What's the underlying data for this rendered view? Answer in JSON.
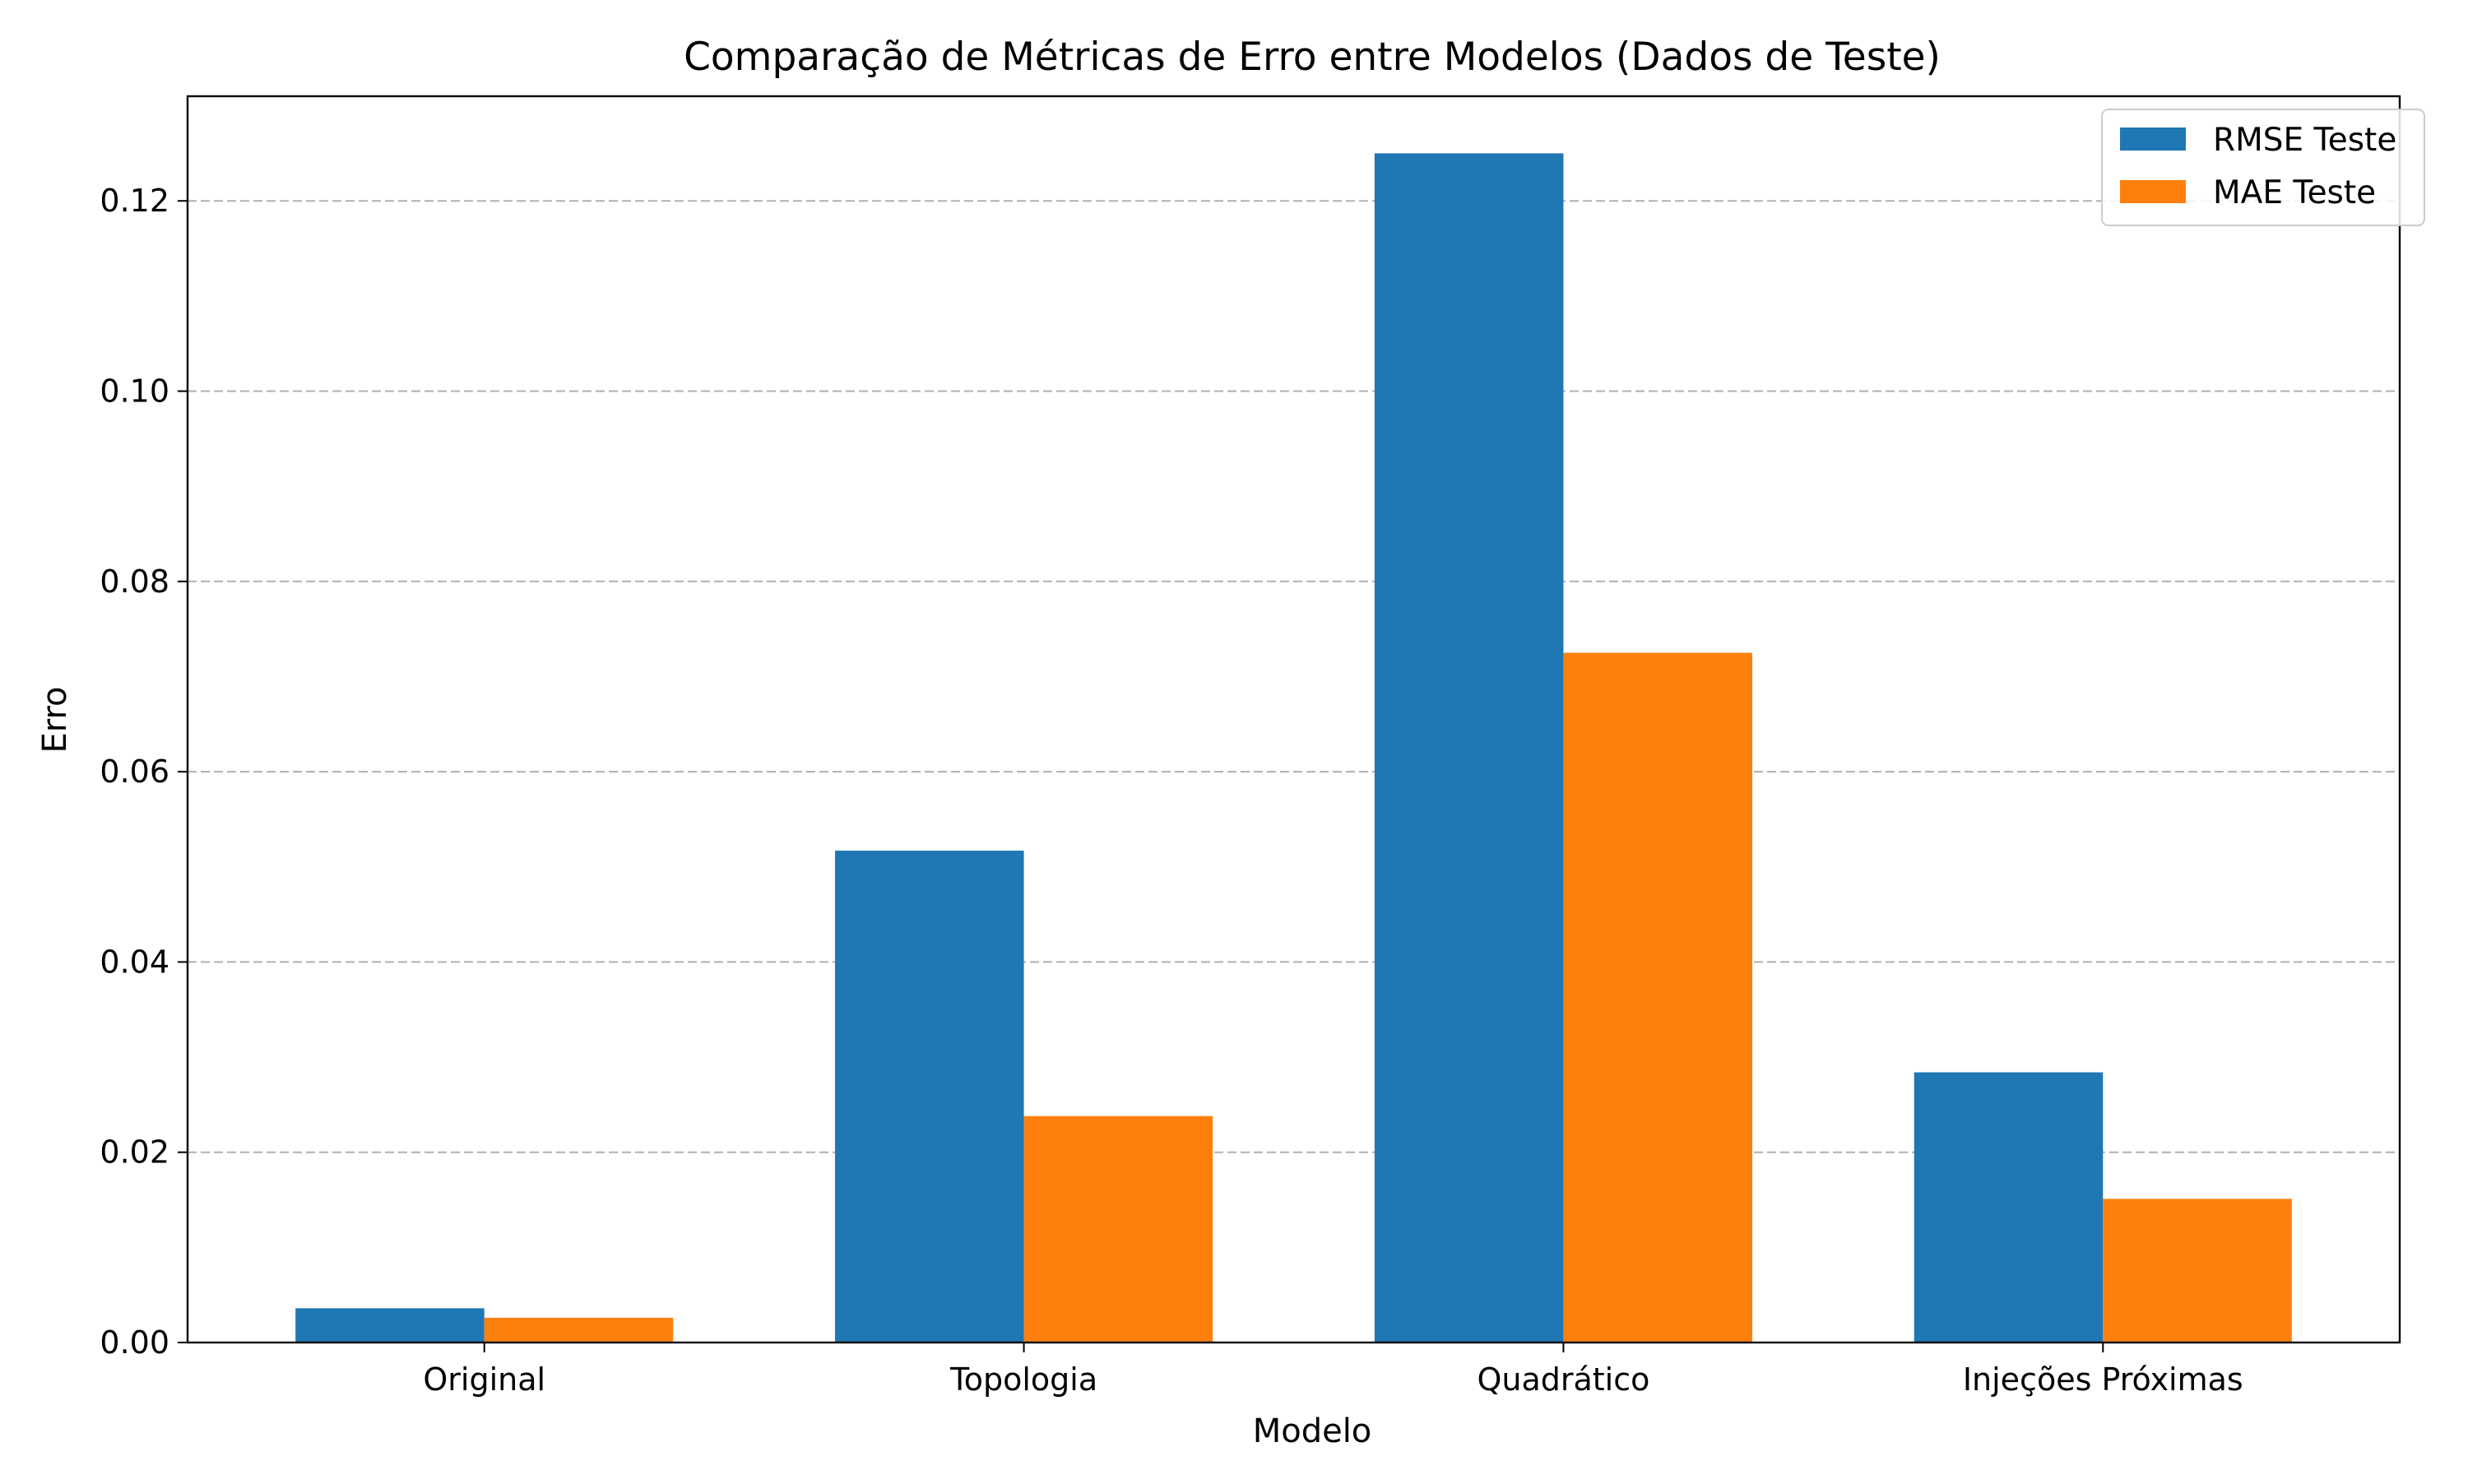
{
  "chart_data": {
    "type": "bar",
    "title": "Comparação de Métricas de Erro entre Modelos (Dados de Teste)",
    "xlabel": "Modelo",
    "ylabel": "Erro",
    "categories": [
      "Original",
      "Topologia",
      "Quadrático",
      "Injeções Próximas"
    ],
    "series": [
      {
        "name": "RMSE Teste",
        "color": "#1f77b4",
        "values": [
          0.0036,
          0.0517,
          0.125,
          0.0284
        ]
      },
      {
        "name": "MAE Teste",
        "color": "#ff7f0e",
        "values": [
          0.0026,
          0.0238,
          0.0725,
          0.0151
        ]
      }
    ],
    "ylim": [
      0,
      0.131
    ],
    "yticks": [
      0.0,
      0.02,
      0.04,
      0.06,
      0.08,
      0.1,
      0.12
    ],
    "ytick_labels": [
      "0.00",
      "0.02",
      "0.04",
      "0.06",
      "0.08",
      "0.10",
      "0.12"
    ],
    "grid": "y-dashed",
    "legend_position": "top-right"
  }
}
